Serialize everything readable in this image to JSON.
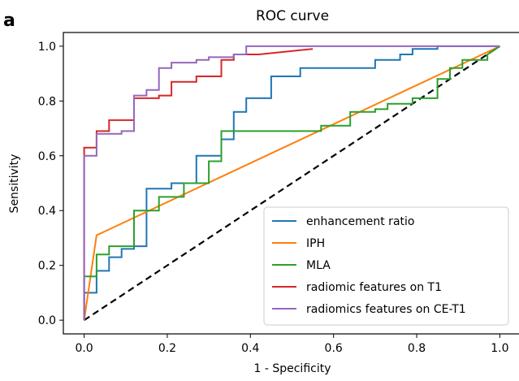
{
  "panel_label": "a",
  "chart_data": {
    "type": "line",
    "title": "ROC curve",
    "xlabel": "1 - Specificity",
    "ylabel": "Sensitivity",
    "xlim": [
      -0.05,
      1.05
    ],
    "ylim": [
      -0.05,
      1.05
    ],
    "xticks": [
      0.0,
      0.2,
      0.4,
      0.6,
      0.8,
      1.0
    ],
    "yticks": [
      0.0,
      0.2,
      0.4,
      0.6,
      0.8,
      1.0
    ],
    "xtick_labels": [
      "0.0",
      "0.2",
      "0.4",
      "0.6",
      "0.8",
      "1.0"
    ],
    "ytick_labels": [
      "0.0",
      "0.2",
      "0.4",
      "0.6",
      "0.8",
      "1.0"
    ],
    "grid": false,
    "legend_position": "lower-right",
    "series": [
      {
        "name": "enhancement ratio",
        "color": "#1f77b4",
        "x": [
          0.0,
          0.0,
          0.03,
          0.03,
          0.06,
          0.06,
          0.09,
          0.09,
          0.12,
          0.12,
          0.15,
          0.15,
          0.21,
          0.21,
          0.27,
          0.27,
          0.33,
          0.33,
          0.36,
          0.36,
          0.39,
          0.39,
          0.45,
          0.45,
          0.52,
          0.52,
          0.7,
          0.7,
          0.76,
          0.76,
          0.79,
          0.79,
          0.85,
          0.85,
          1.0
        ],
        "y": [
          0.0,
          0.1,
          0.1,
          0.18,
          0.18,
          0.23,
          0.23,
          0.26,
          0.26,
          0.27,
          0.27,
          0.48,
          0.48,
          0.5,
          0.5,
          0.6,
          0.6,
          0.66,
          0.66,
          0.76,
          0.76,
          0.81,
          0.81,
          0.89,
          0.89,
          0.92,
          0.92,
          0.95,
          0.95,
          0.97,
          0.97,
          0.99,
          0.99,
          1.0,
          1.0
        ]
      },
      {
        "name": "IPH",
        "color": "#ff7f0e",
        "x": [
          0.0,
          0.03,
          1.0
        ],
        "y": [
          0.0,
          0.31,
          1.0
        ]
      },
      {
        "name": "MLA",
        "color": "#2ca02c",
        "x": [
          0.0,
          0.0,
          0.03,
          0.03,
          0.06,
          0.06,
          0.12,
          0.12,
          0.18,
          0.18,
          0.24,
          0.24,
          0.3,
          0.3,
          0.33,
          0.33,
          0.57,
          0.57,
          0.64,
          0.64,
          0.7,
          0.7,
          0.73,
          0.73,
          0.79,
          0.79,
          0.85,
          0.85,
          0.88,
          0.88,
          0.91,
          0.91,
          0.97,
          0.97,
          1.0
        ],
        "y": [
          0.0,
          0.16,
          0.16,
          0.24,
          0.24,
          0.27,
          0.27,
          0.4,
          0.4,
          0.45,
          0.45,
          0.5,
          0.5,
          0.58,
          0.58,
          0.69,
          0.69,
          0.71,
          0.71,
          0.76,
          0.76,
          0.77,
          0.77,
          0.79,
          0.79,
          0.81,
          0.81,
          0.88,
          0.88,
          0.92,
          0.92,
          0.95,
          0.95,
          0.97,
          1.0
        ]
      },
      {
        "name": "radiomic features on T1",
        "color": "#d62728",
        "x": [
          0.0,
          0.0,
          0.03,
          0.03,
          0.06,
          0.06,
          0.12,
          0.12,
          0.18,
          0.18,
          0.21,
          0.21,
          0.27,
          0.27,
          0.33,
          0.33,
          0.36,
          0.36,
          0.42,
          0.42,
          0.55
        ],
        "y": [
          0.0,
          0.63,
          0.63,
          0.69,
          0.69,
          0.73,
          0.73,
          0.81,
          0.81,
          0.82,
          0.82,
          0.87,
          0.87,
          0.89,
          0.89,
          0.95,
          0.95,
          0.97,
          0.97,
          0.97,
          0.99
        ]
      },
      {
        "name": "radiomics features on CE-T1",
        "color": "#9467bd",
        "x": [
          0.0,
          0.0,
          0.03,
          0.03,
          0.09,
          0.09,
          0.12,
          0.12,
          0.15,
          0.15,
          0.18,
          0.18,
          0.21,
          0.21,
          0.27,
          0.27,
          0.3,
          0.3,
          0.36,
          0.36,
          0.39,
          0.39,
          1.0
        ],
        "y": [
          0.0,
          0.6,
          0.6,
          0.68,
          0.68,
          0.69,
          0.69,
          0.82,
          0.82,
          0.84,
          0.84,
          0.92,
          0.92,
          0.94,
          0.94,
          0.95,
          0.95,
          0.96,
          0.96,
          0.97,
          0.97,
          1.0,
          1.0
        ]
      }
    ],
    "reference_line": {
      "color": "#000000",
      "style": "dashed",
      "x": [
        0.0,
        1.0
      ],
      "y": [
        0.0,
        1.0
      ]
    }
  }
}
